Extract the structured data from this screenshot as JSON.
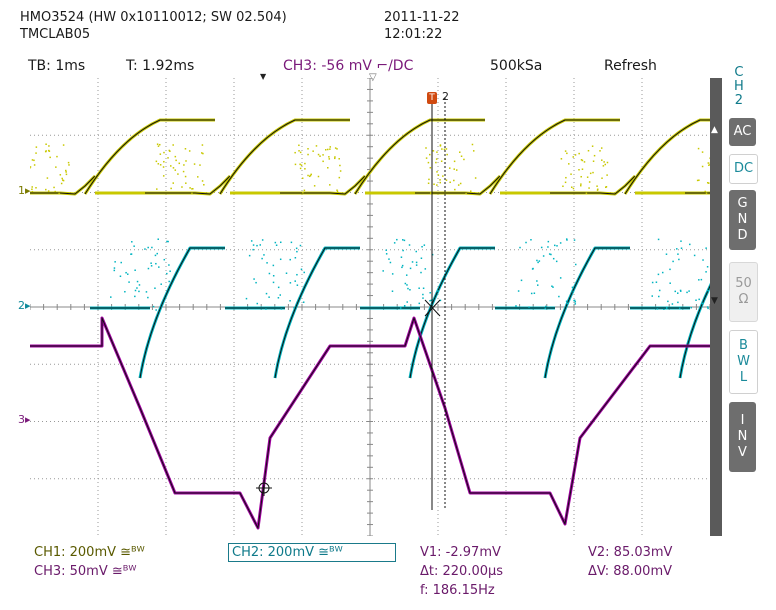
{
  "header": {
    "device": "HMO3524 (HW 0x10110012; SW 02.504)",
    "lab": "TMCLAB05",
    "date": "2011-11-22",
    "time": "12:01:22"
  },
  "toolbar": {
    "timebase": "TB: 1ms",
    "trigger_time": "T: 1.92ms",
    "trigger": "CH3: -56 mV ⌐/DC",
    "sample_rate": "500kSa",
    "refresh": "Refresh"
  },
  "side_menu": {
    "channel_title": [
      "C",
      "H",
      "2"
    ],
    "buttons": [
      {
        "name": "ac",
        "label": [
          "AC"
        ],
        "state": "dark"
      },
      {
        "name": "dc",
        "label": [
          "DC"
        ],
        "state": "light"
      },
      {
        "name": "gnd",
        "label": [
          "G",
          "N",
          "D"
        ],
        "state": "dark"
      },
      {
        "name": "50ohm",
        "label": [
          "50",
          "Ω"
        ],
        "state": "grey"
      },
      {
        "name": "bwl",
        "label": [
          "B",
          "W",
          "L"
        ],
        "state": "light"
      },
      {
        "name": "inv",
        "label": [
          "I",
          "N",
          "V"
        ],
        "state": "dark"
      }
    ]
  },
  "markers": {
    "ch1": "1",
    "ch2": "2",
    "ch3": "3",
    "cursor2": "2"
  },
  "footer": {
    "ch1": "CH1: 200mV ≅ᴮᵂ",
    "ch3": "CH3: 50mV ≅ᴮᵂ",
    "ch2": "CH2: 200mV ≅ᴮᵂ",
    "v1": "V1: -2.97mV",
    "v2": "V2: 85.03mV",
    "dt": "Δt: 220.00µs",
    "dv": "ΔV: 88.00mV",
    "freq": "f: 186.15Hz"
  },
  "colors": {
    "ch1": "#c8c800",
    "ch2": "#00b4c0",
    "ch3": "#a000a0",
    "grid": "#888888"
  }
}
